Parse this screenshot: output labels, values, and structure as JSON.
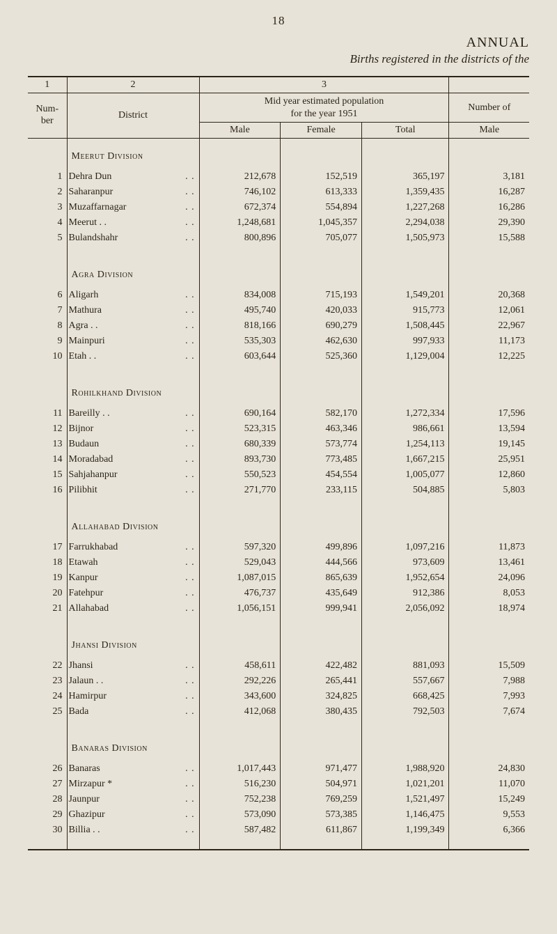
{
  "page_number": "18",
  "annual_label": "ANNUAL",
  "subtitle": "Births registered in the districts of the",
  "header_row_nums": {
    "c1": "1",
    "c2": "2",
    "c3": "3"
  },
  "labels": {
    "number_l1": "Num-",
    "number_l2": "ber",
    "district": "District",
    "mid_year_l1": "Mid year estimated population",
    "mid_year_l2": "for the year 1951",
    "male": "Male",
    "female": "Female",
    "total": "Total",
    "number_of": "Number of",
    "male2": "Male"
  },
  "sections": [
    {
      "heading": "Meerut Division",
      "rows": [
        {
          "n": "1",
          "d": "Dehra Dun",
          "m": "212,678",
          "f": "152,519",
          "t": "365,197",
          "nm": "3,181"
        },
        {
          "n": "2",
          "d": "Saharanpur",
          "m": "746,102",
          "f": "613,333",
          "t": "1,359,435",
          "nm": "16,287"
        },
        {
          "n": "3",
          "d": "Muzaffarnagar",
          "m": "672,374",
          "f": "554,894",
          "t": "1,227,268",
          "nm": "16,286"
        },
        {
          "n": "4",
          "d": "Meerut   . .",
          "m": "1,248,681",
          "f": "1,045,357",
          "t": "2,294,038",
          "nm": "29,390"
        },
        {
          "n": "5",
          "d": "Bulandshahr",
          "m": "800,896",
          "f": "705,077",
          "t": "1,505,973",
          "nm": "15,588"
        }
      ]
    },
    {
      "heading": "Agra Division",
      "rows": [
        {
          "n": "6",
          "d": "Aligarh",
          "m": "834,008",
          "f": "715,193",
          "t": "1,549,201",
          "nm": "20,368"
        },
        {
          "n": "7",
          "d": "Mathura",
          "m": "495,740",
          "f": "420,033",
          "t": "915,773",
          "nm": "12,061"
        },
        {
          "n": "8",
          "d": "Agra    . .",
          "m": "818,166",
          "f": "690,279",
          "t": "1,508,445",
          "nm": "22,967"
        },
        {
          "n": "9",
          "d": "Mainpuri",
          "m": "535,303",
          "f": "462,630",
          "t": "997,933",
          "nm": "11,173"
        },
        {
          "n": "10",
          "d": "Etah   . .",
          "m": "603,644",
          "f": "525,360",
          "t": "1,129,004",
          "nm": "12,225"
        }
      ]
    },
    {
      "heading": "Rohilkhand Division",
      "rows": [
        {
          "n": "11",
          "d": "Bareilly  . .",
          "m": "690,164",
          "f": "582,170",
          "t": "1,272,334",
          "nm": "17,596"
        },
        {
          "n": "12",
          "d": "Bijnor",
          "m": "523,315",
          "f": "463,346",
          "t": "986,661",
          "nm": "13,594"
        },
        {
          "n": "13",
          "d": "Budaun",
          "m": "680,339",
          "f": "573,774",
          "t": "1,254,113",
          "nm": "19,145"
        },
        {
          "n": "14",
          "d": "Moradabad",
          "m": "893,730",
          "f": "773,485",
          "t": "1,667,215",
          "nm": "25,951"
        },
        {
          "n": "15",
          "d": "Sahjahanpur",
          "m": "550,523",
          "f": "454,554",
          "t": "1,005,077",
          "nm": "12,860"
        },
        {
          "n": "16",
          "d": "Pilibhit",
          "m": "271,770",
          "f": "233,115",
          "t": "504,885",
          "nm": "5,803"
        }
      ]
    },
    {
      "heading": "Allahabad Division",
      "rows": [
        {
          "n": "17",
          "d": "Farrukhabad",
          "m": "597,320",
          "f": "499,896",
          "t": "1,097,216",
          "nm": "11,873"
        },
        {
          "n": "18",
          "d": "Etawah",
          "m": "529,043",
          "f": "444,566",
          "t": "973,609",
          "nm": "13,461"
        },
        {
          "n": "19",
          "d": "Kanpur",
          "m": "1,087,015",
          "f": "865,639",
          "t": "1,952,654",
          "nm": "24,096"
        },
        {
          "n": "20",
          "d": "Fatehpur",
          "m": "476,737",
          "f": "435,649",
          "t": "912,386",
          "nm": "8,053"
        },
        {
          "n": "21",
          "d": "Allahabad",
          "m": "1,056,151",
          "f": "999,941",
          "t": "2,056,092",
          "nm": "18,974"
        }
      ]
    },
    {
      "heading": "Jhansi Division",
      "rows": [
        {
          "n": "22",
          "d": "Jhansi",
          "m": "458,611",
          "f": "422,482",
          "t": "881,093",
          "nm": "15,509"
        },
        {
          "n": "23",
          "d": "Jalaun   . .",
          "m": "292,226",
          "f": "265,441",
          "t": "557,667",
          "nm": "7,988"
        },
        {
          "n": "24",
          "d": "Hamirpur",
          "m": "343,600",
          "f": "324,825",
          "t": "668,425",
          "nm": "7,993"
        },
        {
          "n": "25",
          "d": "Bada",
          "m": "412,068",
          "f": "380,435",
          "t": "792,503",
          "nm": "7,674"
        }
      ]
    },
    {
      "heading": "Banaras Division",
      "rows": [
        {
          "n": "26",
          "d": "Banaras",
          "m": "1,017,443",
          "f": "971,477",
          "t": "1,988,920",
          "nm": "24,830"
        },
        {
          "n": "27",
          "d": "Mirzapur  *",
          "m": "516,230",
          "f": "504,971",
          "t": "1,021,201",
          "nm": "11,070"
        },
        {
          "n": "28",
          "d": "Jaunpur",
          "m": "752,238",
          "f": "769,259",
          "t": "1,521,497",
          "nm": "15,249"
        },
        {
          "n": "29",
          "d": "Ghazipur",
          "m": "573,090",
          "f": "573,385",
          "t": "1,146,475",
          "nm": "9,553"
        },
        {
          "n": "30",
          "d": "Billia    . .",
          "m": "587,482",
          "f": "611,867",
          "t": "1,199,349",
          "nm": "6,366"
        }
      ]
    }
  ],
  "style": {
    "background": "#e8e3d8",
    "text_color": "#2b2418",
    "rule_color": "#2b2418",
    "font_family": "Times New Roman, Georgia, serif"
  }
}
